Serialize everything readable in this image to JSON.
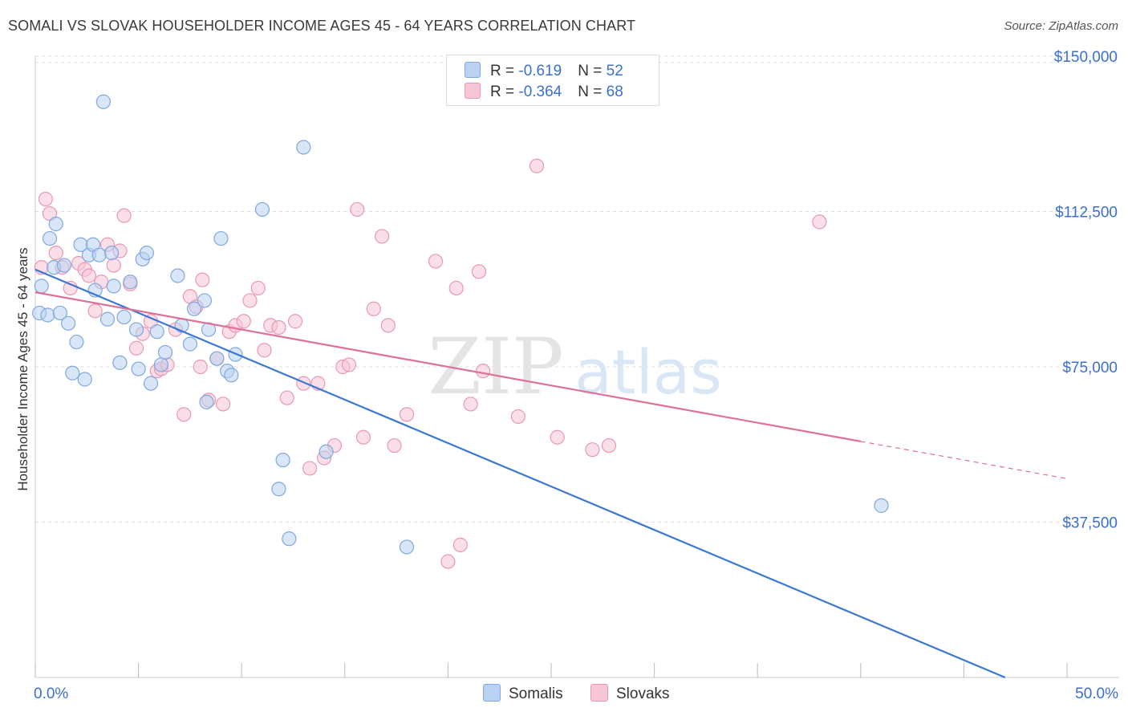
{
  "header": {
    "title": "SOMALI VS SLOVAK HOUSEHOLDER INCOME AGES 45 - 64 YEARS CORRELATION CHART",
    "source": "Source: ZipAtlas.com"
  },
  "watermark": {
    "zip": "ZIP",
    "atlas": "atlas"
  },
  "legend": {
    "rows": [
      {
        "r_label": "R = ",
        "r_value": "-0.619",
        "n_label": "N = ",
        "n_value": "52"
      },
      {
        "r_label": "R = ",
        "r_value": "-0.364",
        "n_label": "N = ",
        "n_value": "68"
      }
    ]
  },
  "colors": {
    "somalis_fill": "#b9d2f3",
    "somalis_stroke": "#7fa8e0",
    "somalis_line": "#3a78d4",
    "slovaks_fill": "#f7c5d5",
    "slovaks_stroke": "#e898b3",
    "slovaks_line": "#e07098",
    "tick_label": "#3a6fcf",
    "grid": "#dddddd"
  },
  "chart_data": {
    "type": "scatter",
    "title": "SOMALI VS SLOVAK HOUSEHOLDER INCOME AGES 45 - 64 YEARS CORRELATION CHART",
    "xlabel": "",
    "ylabel": "Householder Income Ages 45 - 64 years",
    "xlim": [
      0,
      50
    ],
    "ylim": [
      0,
      150000
    ],
    "x_tick_labels": [
      "0.0%",
      "50.0%"
    ],
    "y_ticks": [
      37500,
      75000,
      112500,
      150000
    ],
    "y_tick_labels": [
      "$37,500",
      "$75,000",
      "$112,500",
      "$150,000"
    ],
    "grid": true,
    "legend_position": "top-center and bottom",
    "series": [
      {
        "name": "Somalis",
        "r": -0.619,
        "n": 52,
        "trend": {
          "x": [
            0,
            47
          ],
          "y": [
            98500,
            0
          ]
        },
        "points": [
          [
            0.2,
            88000
          ],
          [
            0.3,
            94500
          ],
          [
            0.6,
            87500
          ],
          [
            0.7,
            106000
          ],
          [
            0.9,
            99000
          ],
          [
            1.0,
            109500
          ],
          [
            1.2,
            88000
          ],
          [
            1.4,
            99500
          ],
          [
            1.6,
            85500
          ],
          [
            1.8,
            73500
          ],
          [
            2.0,
            81000
          ],
          [
            2.2,
            104500
          ],
          [
            2.4,
            72000
          ],
          [
            2.6,
            102000
          ],
          [
            2.8,
            104500
          ],
          [
            2.9,
            93500
          ],
          [
            3.1,
            102000
          ],
          [
            3.3,
            139000
          ],
          [
            3.5,
            86500
          ],
          [
            3.7,
            102500
          ],
          [
            3.8,
            94500
          ],
          [
            4.1,
            76000
          ],
          [
            4.3,
            87000
          ],
          [
            4.6,
            95500
          ],
          [
            4.9,
            84000
          ],
          [
            5.0,
            74500
          ],
          [
            5.2,
            101000
          ],
          [
            5.4,
            102500
          ],
          [
            5.6,
            71000
          ],
          [
            5.9,
            83500
          ],
          [
            6.1,
            75500
          ],
          [
            6.3,
            78500
          ],
          [
            6.9,
            97000
          ],
          [
            7.1,
            85000
          ],
          [
            7.5,
            80500
          ],
          [
            7.7,
            89000
          ],
          [
            8.2,
            91000
          ],
          [
            8.3,
            66500
          ],
          [
            8.4,
            84000
          ],
          [
            8.8,
            77000
          ],
          [
            9.0,
            106000
          ],
          [
            9.3,
            74000
          ],
          [
            9.7,
            78000
          ],
          [
            11.0,
            113000
          ],
          [
            12.0,
            52500
          ],
          [
            12.3,
            33500
          ],
          [
            11.8,
            45500
          ],
          [
            13.0,
            128000
          ],
          [
            14.1,
            54500
          ],
          [
            18.0,
            31500
          ],
          [
            41.0,
            41500
          ],
          [
            9.5,
            73000
          ]
        ]
      },
      {
        "name": "Slovaks",
        "r": -0.364,
        "n": 68,
        "trend": {
          "x": [
            0,
            40
          ],
          "y": [
            93000,
            57000
          ]
        },
        "trend_dashed": {
          "x": [
            40,
            50
          ],
          "y": [
            57000,
            48000
          ]
        },
        "points": [
          [
            0.3,
            99000
          ],
          [
            0.5,
            115500
          ],
          [
            0.7,
            112000
          ],
          [
            1.0,
            102500
          ],
          [
            1.3,
            99000
          ],
          [
            1.7,
            94000
          ],
          [
            2.1,
            100000
          ],
          [
            2.4,
            98500
          ],
          [
            2.6,
            97000
          ],
          [
            2.9,
            88500
          ],
          [
            3.2,
            95500
          ],
          [
            3.5,
            104500
          ],
          [
            3.8,
            99500
          ],
          [
            4.1,
            103000
          ],
          [
            4.3,
            111500
          ],
          [
            4.6,
            95000
          ],
          [
            4.9,
            79500
          ],
          [
            5.2,
            83000
          ],
          [
            5.6,
            86000
          ],
          [
            5.9,
            74000
          ],
          [
            6.1,
            74500
          ],
          [
            6.4,
            75500
          ],
          [
            6.8,
            84000
          ],
          [
            7.2,
            63500
          ],
          [
            7.5,
            92000
          ],
          [
            7.8,
            89500
          ],
          [
            8.1,
            96000
          ],
          [
            8.4,
            67000
          ],
          [
            8.8,
            77000
          ],
          [
            9.1,
            66000
          ],
          [
            9.4,
            83500
          ],
          [
            9.7,
            85000
          ],
          [
            10.1,
            86000
          ],
          [
            10.4,
            91000
          ],
          [
            10.8,
            94000
          ],
          [
            11.1,
            79000
          ],
          [
            11.4,
            85000
          ],
          [
            11.8,
            84500
          ],
          [
            12.2,
            67500
          ],
          [
            12.6,
            86000
          ],
          [
            13.0,
            71000
          ],
          [
            13.3,
            50500
          ],
          [
            13.7,
            71000
          ],
          [
            14.0,
            53000
          ],
          [
            14.5,
            56000
          ],
          [
            14.9,
            75000
          ],
          [
            15.2,
            75500
          ],
          [
            15.6,
            113000
          ],
          [
            15.9,
            58000
          ],
          [
            16.4,
            89000
          ],
          [
            16.8,
            106500
          ],
          [
            17.1,
            85000
          ],
          [
            17.4,
            56000
          ],
          [
            18.0,
            63500
          ],
          [
            19.4,
            100500
          ],
          [
            20.0,
            28000
          ],
          [
            20.4,
            94000
          ],
          [
            20.6,
            32000
          ],
          [
            21.1,
            66000
          ],
          [
            21.5,
            98000
          ],
          [
            21.7,
            74000
          ],
          [
            23.4,
            63000
          ],
          [
            24.3,
            123500
          ],
          [
            25.3,
            58000
          ],
          [
            27.0,
            55000
          ],
          [
            27.8,
            56000
          ],
          [
            38.0,
            110000
          ],
          [
            8.0,
            75000
          ]
        ]
      }
    ]
  },
  "bottom_legend": {
    "items": [
      "Somalis",
      "Slovaks"
    ]
  }
}
